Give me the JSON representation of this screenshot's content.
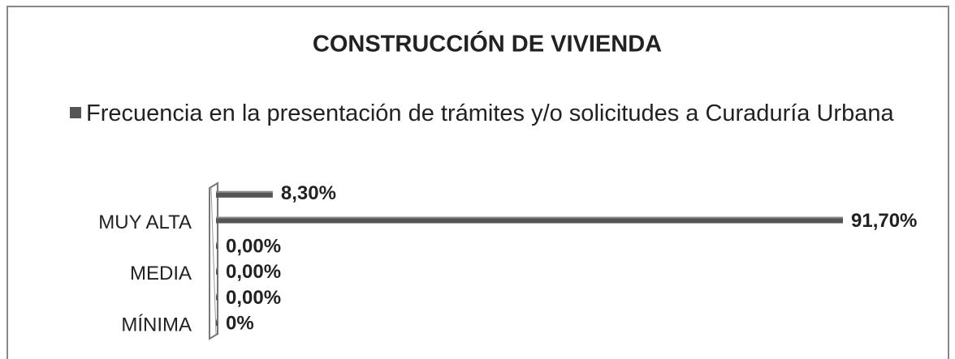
{
  "chart_data": {
    "type": "bar",
    "orientation": "horizontal",
    "title": "CONSTRUCCIÓN DE VIVIENDA",
    "series": [
      {
        "name": "Frecuencia en la presentación de trámites y/o solicitudes a Curaduría Urbana",
        "color": "#555555",
        "values": [
          8.3,
          91.7,
          0,
          0,
          0,
          0
        ],
        "value_labels": [
          "8,30%",
          "91,70%",
          "0,00%",
          "0,00%",
          "0,00%",
          "0%"
        ]
      }
    ],
    "categories": [
      null,
      "MUY ALTA",
      null,
      "MEDIA",
      null,
      "MÍNIMA"
    ]
  }
}
